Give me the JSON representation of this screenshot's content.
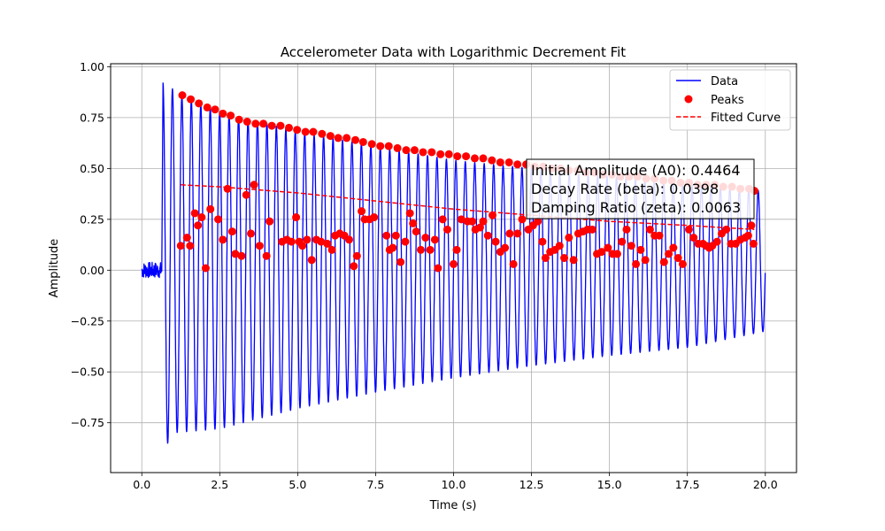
{
  "chart_data": {
    "type": "line",
    "title": "Accelerometer Data with Logarithmic Decrement Fit",
    "xlabel": "Time (s)",
    "ylabel": "Amplitude",
    "xlim": [
      -1.0,
      21.0
    ],
    "ylim": [
      -0.995,
      1.015
    ],
    "xticks": [
      0.0,
      2.5,
      5.0,
      7.5,
      10.0,
      12.5,
      15.0,
      17.5,
      20.0
    ],
    "xtick_labels": [
      "0.0",
      "2.5",
      "5.0",
      "7.5",
      "10.0",
      "12.5",
      "15.0",
      "17.5",
      "20.0"
    ],
    "yticks": [
      -0.75,
      -0.5,
      -0.25,
      0.0,
      0.25,
      0.5,
      0.75,
      1.0
    ],
    "ytick_labels": [
      "−0.75",
      "−0.50",
      "−0.25",
      "0.00",
      "0.25",
      "0.50",
      "0.75",
      "1.00"
    ],
    "grid": true,
    "legend_position": "top-right",
    "legend": [
      {
        "label": "Data",
        "style": "line",
        "color": "#0000ff"
      },
      {
        "label": "Peaks",
        "style": "marker",
        "color": "#ff0000"
      },
      {
        "label": "Fitted Curve",
        "style": "dashed",
        "color": "#ff0000"
      }
    ],
    "signal": {
      "name": "Data",
      "color": "#0000ff",
      "noise_segment": {
        "x_range": [
          0.0,
          0.65
        ],
        "amplitude": 0.04
      },
      "impact_time": 0.68,
      "frequency_hz": 3.3,
      "end_time": 20.0,
      "upper_envelope": {
        "x": [
          0.75,
          1.25,
          2.5,
          5.0,
          7.5,
          10.0,
          12.5,
          15.0,
          17.5,
          20.0
        ],
        "y": [
          0.92,
          0.86,
          0.78,
          0.68,
          0.61,
          0.54,
          0.5,
          0.46,
          0.42,
          0.39
        ]
      },
      "lower_envelope": {
        "x": [
          0.7,
          1.0,
          2.5,
          5.0,
          7.5,
          10.0,
          12.5,
          15.0,
          17.5,
          20.0
        ],
        "y": [
          -0.89,
          -0.8,
          -0.78,
          -0.68,
          -0.6,
          -0.53,
          -0.47,
          -0.42,
          -0.38,
          -0.3
        ]
      }
    },
    "peaks_upper": {
      "name": "Peaks",
      "color": "#ff0000",
      "x": [
        1.3,
        1.57,
        1.83,
        2.1,
        2.35,
        2.6,
        2.85,
        3.12,
        3.38,
        3.65,
        3.9,
        4.17,
        4.45,
        4.72,
        4.98,
        5.25,
        5.5,
        5.78,
        6.05,
        6.3,
        6.57,
        6.85,
        7.1,
        7.38,
        7.65,
        7.92,
        8.2,
        8.48,
        8.75,
        9.02,
        9.3,
        9.58,
        9.85,
        10.12,
        10.4,
        10.68,
        10.95,
        11.23,
        11.5,
        11.78,
        12.05,
        12.33,
        12.6,
        12.88,
        13.15,
        13.43,
        13.7,
        13.98,
        14.25,
        14.53,
        14.8,
        15.08,
        15.35,
        15.63,
        15.9,
        16.18,
        16.45,
        16.73,
        17.0,
        17.28,
        17.55,
        17.83,
        18.1,
        18.38,
        18.65,
        18.93,
        19.2,
        19.48,
        19.65
      ],
      "y": [
        0.86,
        0.84,
        0.82,
        0.8,
        0.79,
        0.77,
        0.76,
        0.74,
        0.73,
        0.72,
        0.72,
        0.71,
        0.71,
        0.7,
        0.69,
        0.68,
        0.68,
        0.67,
        0.66,
        0.65,
        0.65,
        0.64,
        0.63,
        0.62,
        0.61,
        0.61,
        0.6,
        0.59,
        0.59,
        0.58,
        0.58,
        0.57,
        0.57,
        0.56,
        0.56,
        0.55,
        0.55,
        0.54,
        0.53,
        0.53,
        0.52,
        0.52,
        0.51,
        0.51,
        0.5,
        0.5,
        0.49,
        0.49,
        0.48,
        0.48,
        0.47,
        0.47,
        0.46,
        0.46,
        0.46,
        0.45,
        0.45,
        0.44,
        0.44,
        0.43,
        0.43,
        0.42,
        0.42,
        0.42,
        0.41,
        0.41,
        0.4,
        0.4,
        0.39
      ]
    },
    "peaks_scattered": {
      "color": "#ff0000",
      "x": [
        1.25,
        1.45,
        1.55,
        1.7,
        1.8,
        1.92,
        2.05,
        2.2,
        2.45,
        2.6,
        2.75,
        2.9,
        3.0,
        3.2,
        3.35,
        3.5,
        3.6,
        3.78,
        4.0,
        4.1,
        4.5,
        4.65,
        4.8,
        4.95,
        5.05,
        5.15,
        5.3,
        5.45,
        5.6,
        5.75,
        5.95,
        6.1,
        6.2,
        6.35,
        6.5,
        6.65,
        6.8,
        6.9,
        7.05,
        7.15,
        7.3,
        7.45,
        7.85,
        7.95,
        8.05,
        8.15,
        8.3,
        8.45,
        8.6,
        8.7,
        8.8,
        8.95,
        9.1,
        9.25,
        9.4,
        9.5,
        9.65,
        9.8,
        10.0,
        10.1,
        10.25,
        10.45,
        10.6,
        10.7,
        10.85,
        10.95,
        11.1,
        11.25,
        11.35,
        11.5,
        11.65,
        11.8,
        11.92,
        12.05,
        12.2,
        12.4,
        12.55,
        12.7,
        12.85,
        12.95,
        13.1,
        13.25,
        13.4,
        13.55,
        13.7,
        13.85,
        14.0,
        14.15,
        14.3,
        14.45,
        14.6,
        14.75,
        14.95,
        15.1,
        15.25,
        15.4,
        15.55,
        15.7,
        15.85,
        16.0,
        16.15,
        16.3,
        16.45,
        16.6,
        16.75,
        16.9,
        17.05,
        17.2,
        17.35,
        17.55,
        17.7,
        17.85,
        18.0,
        18.1,
        18.2,
        18.3,
        18.45,
        18.6,
        18.75,
        18.9,
        19.05,
        19.2,
        19.35,
        19.45,
        19.55,
        19.62
      ],
      "y": [
        0.12,
        0.16,
        0.12,
        0.28,
        0.22,
        0.26,
        0.01,
        0.3,
        0.25,
        0.15,
        0.4,
        0.19,
        0.08,
        0.07,
        0.37,
        0.18,
        0.42,
        0.12,
        0.07,
        0.24,
        0.14,
        0.15,
        0.14,
        0.26,
        0.14,
        0.12,
        0.15,
        0.05,
        0.15,
        0.14,
        0.13,
        0.1,
        0.17,
        0.18,
        0.17,
        0.15,
        0.02,
        0.07,
        0.29,
        0.25,
        0.25,
        0.26,
        0.17,
        0.1,
        0.11,
        0.17,
        0.04,
        0.14,
        0.28,
        0.23,
        0.19,
        0.1,
        0.16,
        0.1,
        0.15,
        0.01,
        0.25,
        0.2,
        0.03,
        0.1,
        0.25,
        0.24,
        0.24,
        0.2,
        0.21,
        0.24,
        0.17,
        0.27,
        0.14,
        0.09,
        0.11,
        0.18,
        0.03,
        0.18,
        0.25,
        0.2,
        0.22,
        0.24,
        0.14,
        0.06,
        0.09,
        0.1,
        0.12,
        0.06,
        0.16,
        0.05,
        0.18,
        0.19,
        0.2,
        0.2,
        0.08,
        0.09,
        0.11,
        0.08,
        0.08,
        0.14,
        0.2,
        0.12,
        0.03,
        0.1,
        0.05,
        0.2,
        0.17,
        0.17,
        0.04,
        0.08,
        0.11,
        0.06,
        0.03,
        0.2,
        0.16,
        0.13,
        0.13,
        0.12,
        0.11,
        0.12,
        0.14,
        0.18,
        0.2,
        0.13,
        0.13,
        0.15,
        0.16,
        0.17,
        0.22,
        0.13
      ]
    },
    "fitted_curve": {
      "name": "Fitted Curve",
      "color": "#ff0000",
      "x": [
        1.25,
        2.5,
        5.0,
        7.5,
        10.0,
        12.5,
        15.0,
        17.5,
        19.65
      ],
      "y": [
        0.42,
        0.41,
        0.38,
        0.34,
        0.3,
        0.27,
        0.24,
        0.22,
        0.2
      ]
    },
    "annotation": {
      "lines": [
        "Initial Amplitude (A0): 0.4464",
        "Decay Rate (beta): 0.0398",
        "Damping Ratio (zeta): 0.0063"
      ]
    }
  }
}
